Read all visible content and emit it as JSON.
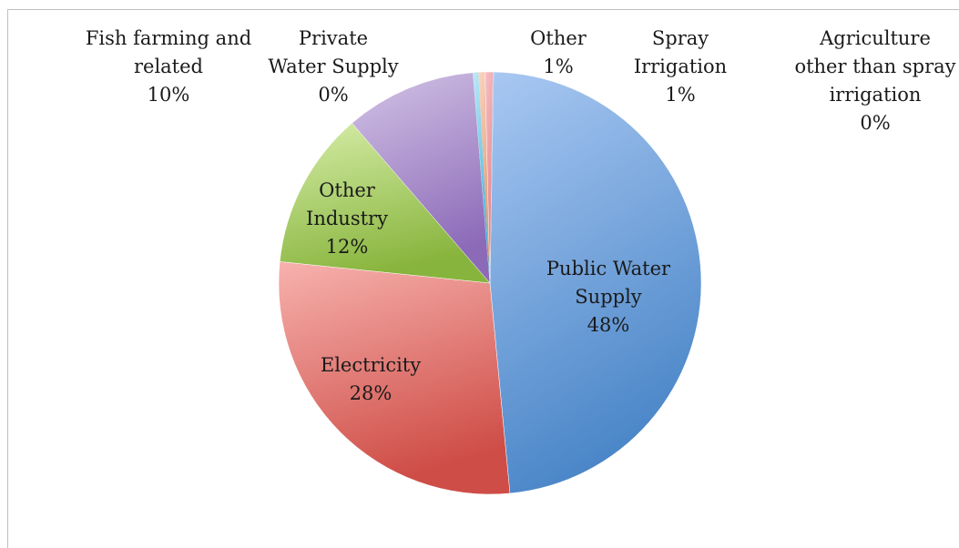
{
  "chart_data": {
    "type": "pie",
    "title": "",
    "slices": [
      {
        "label": [
          "Public Water",
          "Supply"
        ],
        "value": 48,
        "pct_text": "48%",
        "color_light": "#a9c8f2",
        "color_dark": "#4a86c8",
        "id": "public-water-supply"
      },
      {
        "label": [
          "Electricity"
        ],
        "value": 28,
        "pct_text": "28%",
        "color_light": "#f7b2ae",
        "color_dark": "#cf4d47",
        "id": "electricity"
      },
      {
        "label": [
          "Other",
          "Industry"
        ],
        "value": 12,
        "pct_text": "12%",
        "color_light": "#d6eda8",
        "color_dark": "#87b43c",
        "id": "other-industry"
      },
      {
        "label": [
          "Fish farming and",
          "related"
        ],
        "value": 10,
        "pct_text": "10%",
        "color_light": "#d3c4e6",
        "color_dark": "#8c6ab8",
        "id": "fish-farming"
      },
      {
        "label": [
          "Private",
          "Water Supply"
        ],
        "value": 0.4,
        "pct_text": "0%",
        "color_light": "#bfe9f7",
        "color_dark": "#33b0d8",
        "id": "private-water-supply"
      },
      {
        "label": [
          "Other"
        ],
        "value": 0.5,
        "pct_text": "1%",
        "color_light": "#f9d6c2",
        "color_dark": "#e0946c",
        "id": "other"
      },
      {
        "label": [
          "Spray",
          "Irrigation"
        ],
        "value": 0.6,
        "pct_text": "1%",
        "color_light": "#f8c0c4",
        "color_dark": "#e07e86",
        "id": "spray-irrigation"
      },
      {
        "label": [
          "Agriculture",
          "other than spray",
          "irrigation"
        ],
        "value": 0.05,
        "pct_text": "0%",
        "color_light": "#c5dcf5",
        "color_dark": "#6a9ad0",
        "id": "agriculture-other"
      }
    ]
  }
}
